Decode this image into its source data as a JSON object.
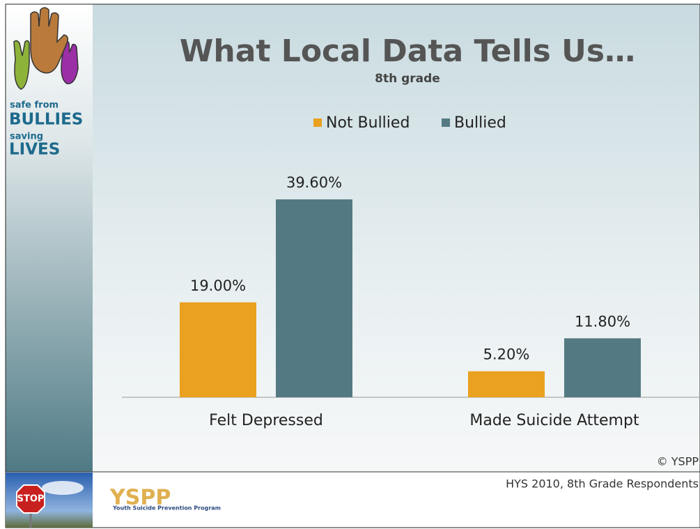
{
  "chart_data": {
    "type": "bar",
    "title": "What Local Data Tells Us…",
    "subtitle": "8th grade",
    "categories": [
      "Felt Depressed",
      "Made Suicide Attempt"
    ],
    "series": [
      {
        "name": "Not Bullied",
        "color": "#e9a11f",
        "values": [
          19.0,
          5.2
        ],
        "value_labels": [
          "19.00%",
          "5.20%"
        ]
      },
      {
        "name": "Bullied",
        "color": "#537a82",
        "values": [
          39.6,
          11.8
        ],
        "value_labels": [
          "39.60%",
          "11.80%"
        ]
      }
    ],
    "legend": "top"
  },
  "slide": {
    "copyright": "© YSPP",
    "source": "HYS 2010, 8th Grade Respondents",
    "logo": {
      "line1": "safe from",
      "line2": "BULLIES",
      "line3": "saving",
      "line4": "LIVES"
    },
    "footer_logo": {
      "name": "YSPP",
      "tagline": "Youth Suicide Prevention Program"
    },
    "sign": "STOP"
  }
}
